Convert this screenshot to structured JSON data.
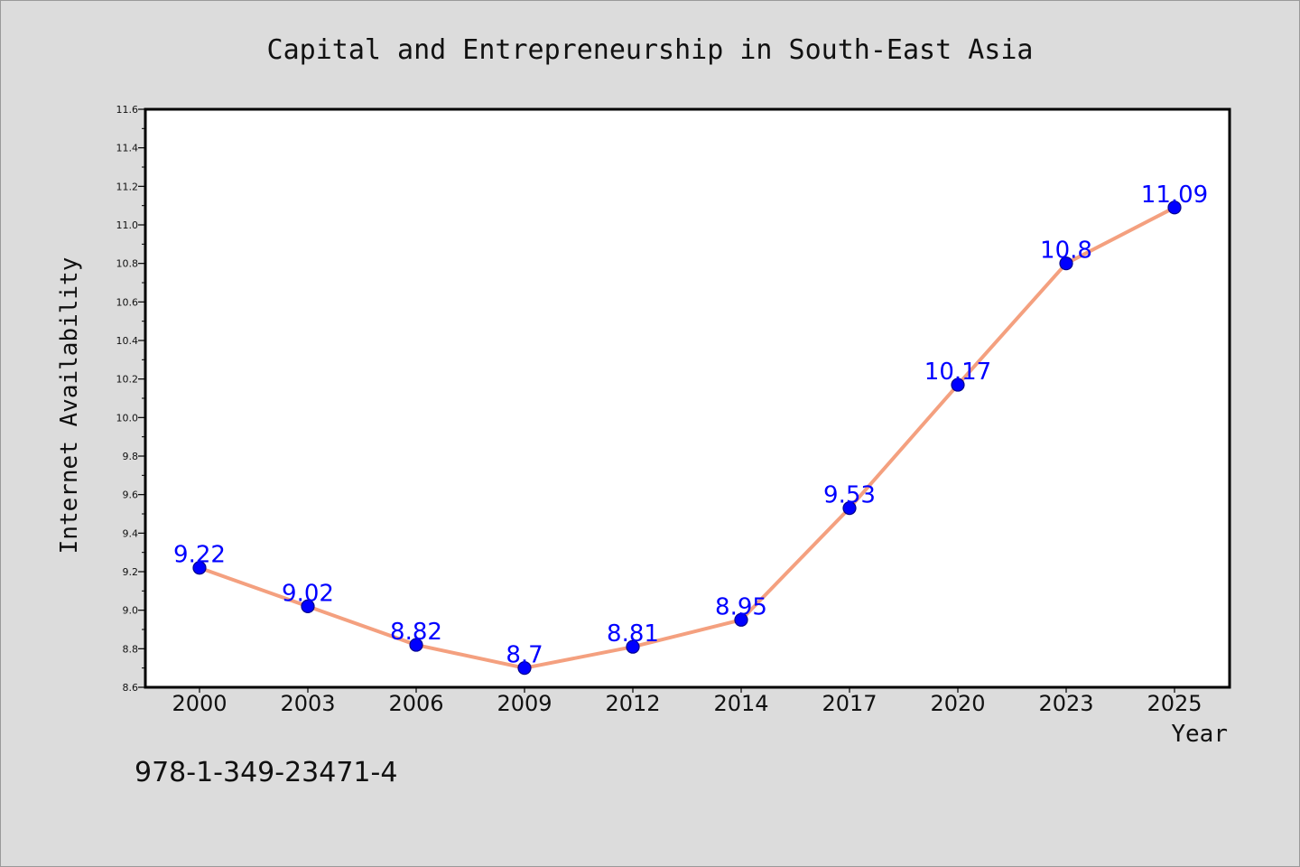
{
  "chart_data": {
    "type": "line",
    "title": "Capital and Entrepreneurship in South-East Asia",
    "xlabel": "Year",
    "ylabel": "Internet Availability",
    "categories": [
      "2000",
      "2003",
      "2006",
      "2009",
      "2012",
      "2014",
      "2017",
      "2020",
      "2023",
      "2025"
    ],
    "series": [
      {
        "values": [
          9.22,
          9.02,
          8.82,
          8.7,
          8.81,
          8.95,
          9.53,
          10.17,
          10.8,
          11.09
        ],
        "labels": [
          "9.22",
          "9.02",
          "8.82",
          "8.7",
          "8.81",
          "8.95",
          "9.53",
          "10.17",
          "10.8",
          "11.09"
        ],
        "line_color": "#f4a07f",
        "marker_color": "#0000ff",
        "marker_edge_color": "#00008b",
        "label_color": "#0000ff"
      }
    ],
    "ylim": [
      8.6,
      11.6
    ],
    "yticks": [
      8.6,
      8.8,
      9.0,
      9.2,
      9.4,
      9.6,
      9.8,
      10.0,
      10.2,
      10.4,
      10.6,
      10.8,
      11.0,
      11.2,
      11.4,
      11.6
    ],
    "ytick_labels": [
      "8.6",
      "8.8",
      "9.0",
      "9.2",
      "9.4",
      "9.6",
      "9.8",
      "10.0",
      "10.2",
      "10.4",
      "10.6",
      "10.8",
      "11.0",
      "11.2",
      "11.4",
      "11.6"
    ],
    "grid": false,
    "legend": "none",
    "background_color": "#dcdcdc",
    "plot_background_color": "#ffffff"
  },
  "annotation": {
    "isbn": "978-1-349-23471-4"
  }
}
